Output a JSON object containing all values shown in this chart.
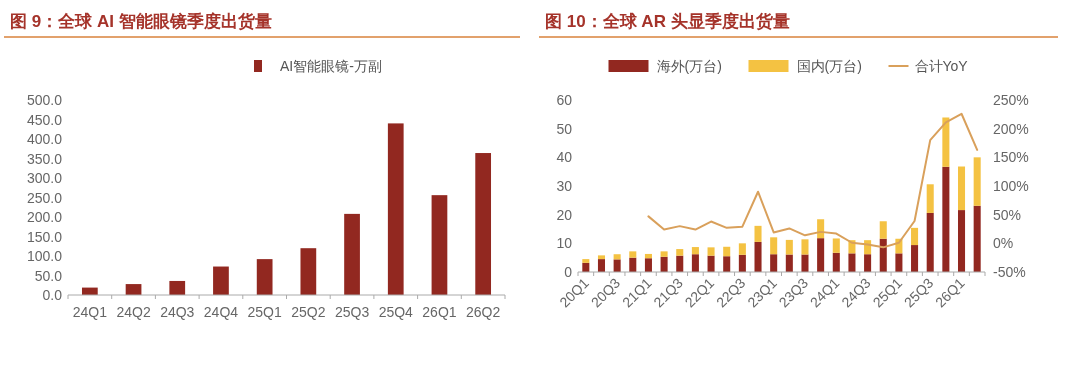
{
  "chart_data": [
    {
      "type": "bar",
      "title": "图 9：全球 AI 智能眼镜季度出货量",
      "categories": [
        "24Q1",
        "24Q2",
        "24Q3",
        "24Q4",
        "25Q1",
        "25Q2",
        "25Q3",
        "25Q4",
        "26Q1",
        "26Q2"
      ],
      "series": [
        {
          "name": "AI智能眼镜-万副",
          "color": "#922820",
          "values": [
            19,
            28,
            36,
            73,
            92,
            120,
            208,
            440,
            256,
            364
          ]
        }
      ],
      "ylim": [
        0,
        500
      ],
      "yticks": [
        {
          "value": 0,
          "label": "0.0"
        },
        {
          "value": 50,
          "label": "50.0"
        },
        {
          "value": 100,
          "label": "100.0"
        },
        {
          "value": 150,
          "label": "150.0"
        },
        {
          "value": 200,
          "label": "200.0"
        },
        {
          "value": 250,
          "label": "250.0"
        },
        {
          "value": 300,
          "label": "300.0"
        },
        {
          "value": 350,
          "label": "350.0"
        },
        {
          "value": 400,
          "label": "400.0"
        },
        {
          "value": 450,
          "label": "450.0"
        },
        {
          "value": 500,
          "label": "500.0"
        }
      ],
      "legend": "top"
    },
    {
      "type": "bar",
      "title": "图 10：全球 AR 头显季度出货量",
      "stacked": true,
      "categories": [
        "20Q1",
        null,
        "20Q3",
        null,
        "21Q1",
        null,
        "21Q3",
        null,
        "22Q1",
        null,
        "22Q3",
        null,
        "23Q1",
        null,
        "23Q3",
        null,
        "24Q1",
        null,
        "24Q3",
        null,
        "25Q1",
        null,
        "25Q3",
        null,
        "26Q1",
        null
      ],
      "series": [
        {
          "name": "海外(万台)",
          "color": "#922820",
          "values": [
            3.2,
            4.5,
            4.4,
            5.0,
            4.8,
            5.3,
            5.7,
            6.2,
            5.7,
            5.5,
            6.0,
            10.5,
            6.2,
            6.1,
            6.1,
            11.8,
            6.7,
            6.5,
            6.2,
            11.6,
            6.5,
            9.4,
            20.6,
            36.7,
            21.6,
            23.1
          ]
        },
        {
          "name": "国内(万台)",
          "color": "#f4c242",
          "values": [
            1.3,
            1.3,
            1.8,
            2.2,
            1.5,
            1.9,
            2.3,
            2.5,
            2.9,
            3.3,
            4.0,
            5.6,
            5.9,
            5.1,
            5.3,
            6.6,
            5.0,
            4.6,
            4.9,
            6.1,
            5.1,
            6.0,
            10.0,
            17.2,
            15.2,
            16.9
          ]
        },
        {
          "name": "合计YoY",
          "color": "#d9a05b",
          "type": "line",
          "axis": "y2",
          "values": [
            null,
            null,
            null,
            null,
            47,
            24,
            30,
            24,
            38,
            27,
            29,
            90,
            19,
            26,
            14,
            20,
            17,
            1,
            -2,
            -7,
            1,
            39,
            180,
            211,
            226,
            163
          ]
        }
      ],
      "ylim": [
        0,
        60
      ],
      "yticks": [
        0,
        10,
        20,
        30,
        40,
        50,
        60
      ],
      "y2lim": [
        -50,
        250
      ],
      "y2ticks": [
        {
          "value": -50,
          "label": "-50%"
        },
        {
          "value": 0,
          "label": "0%"
        },
        {
          "value": 50,
          "label": "50%"
        },
        {
          "value": 100,
          "label": "100%"
        },
        {
          "value": 150,
          "label": "150%"
        },
        {
          "value": 200,
          "label": "200%"
        },
        {
          "value": 250,
          "label": "250%"
        }
      ],
      "legend": "top"
    }
  ]
}
